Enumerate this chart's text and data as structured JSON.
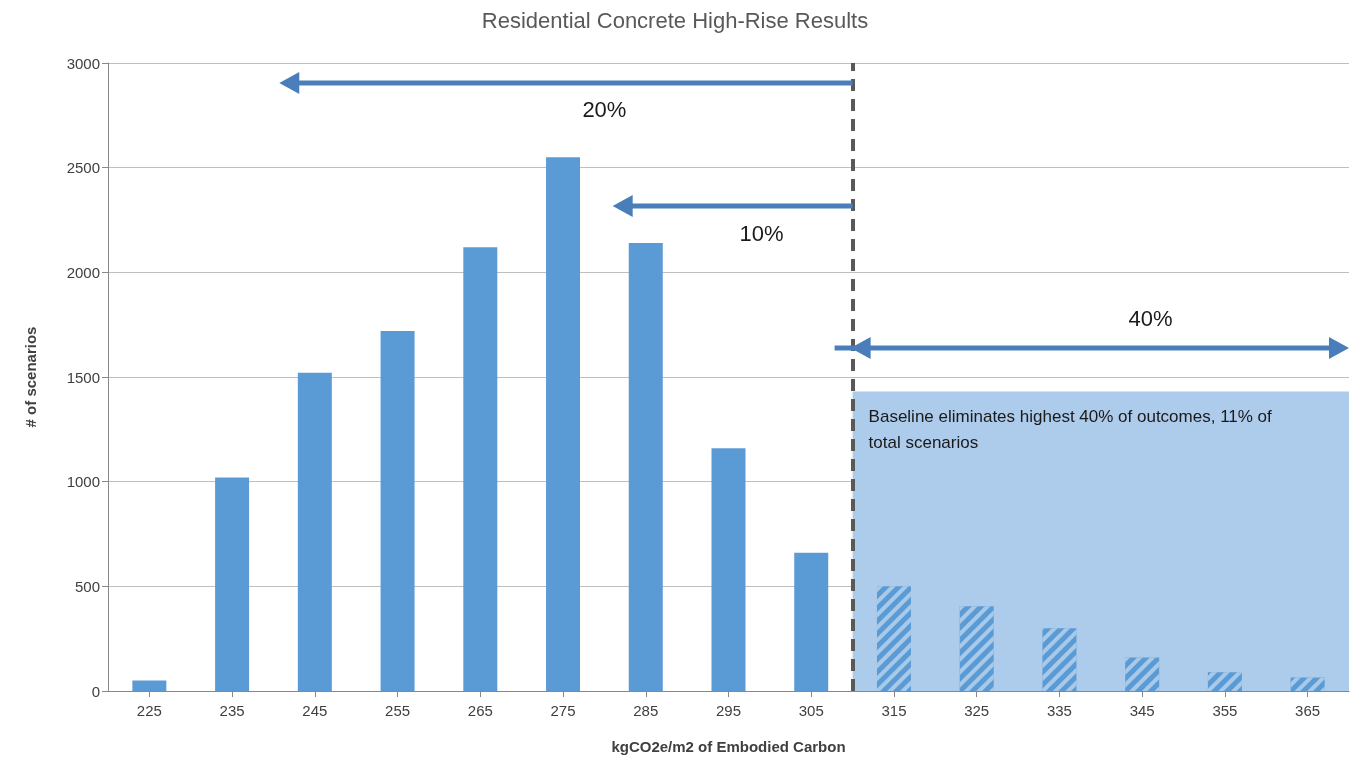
{
  "chart_data": {
    "type": "bar",
    "title": "Residential Concrete High-Rise Results",
    "xlabel": "kgCO2e/m2 of Embodied Carbon",
    "ylabel": "# of scenarios",
    "x": [
      225,
      235,
      245,
      255,
      265,
      275,
      285,
      295,
      305,
      315,
      325,
      335,
      345,
      355,
      365
    ],
    "values": [
      50,
      1020,
      1520,
      1720,
      2120,
      2550,
      2140,
      1160,
      660,
      500,
      405,
      300,
      160,
      90,
      65
    ],
    "color": "#5b9bd5",
    "xlim": [
      220,
      370
    ],
    "xticks": [
      225,
      235,
      245,
      255,
      265,
      275,
      285,
      295,
      305,
      315,
      325,
      335,
      345,
      355,
      365
    ],
    "ylim": [
      0,
      3000
    ],
    "yticks": [
      0,
      500,
      {
        "value": 1000,
        "label": "1000"
      },
      {
        "value": 1500,
        "label": "1500"
      },
      {
        "value": 2000,
        "label": "2000"
      },
      {
        "value": 2500,
        "label": "2500"
      },
      {
        "value": 3000,
        "label": "3000"
      }
    ],
    "grid": "y",
    "ref_lines": [
      {
        "axis": "x",
        "value": 310,
        "color": "#595959",
        "line_style": "dashed"
      }
    ],
    "bands": [
      {
        "axis": "x",
        "from": 310,
        "to": 370,
        "label": "Baseline eliminates highest 40% of outcomes, 11% of total scenarios",
        "color": "#adcbea"
      }
    ],
    "annotations": [
      "20%",
      "10%",
      "40%"
    ]
  }
}
